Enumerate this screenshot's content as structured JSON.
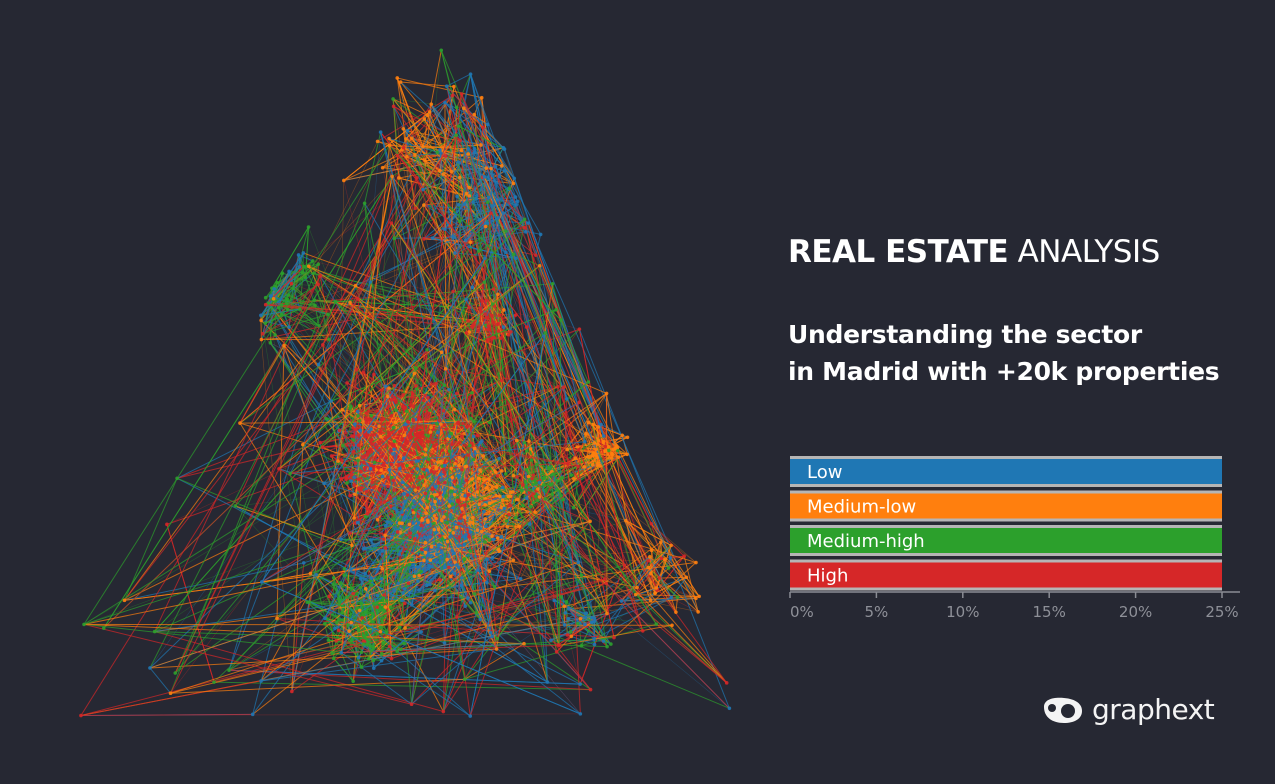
{
  "title": {
    "bold": "REAL ESTATE",
    "light": "ANALYSIS"
  },
  "subtitle": {
    "line1": "Understanding the sector",
    "line2": "in Madrid with +20k properties"
  },
  "colors": {
    "background": "#262833",
    "low": "#1f77b4",
    "medium_low": "#ff7f0e",
    "medium_high": "#2ca02c",
    "high": "#d62728"
  },
  "chart_data": {
    "type": "bar",
    "orientation": "horizontal",
    "categories": [
      "Low",
      "Medium-low",
      "Medium-high",
      "High"
    ],
    "values": [
      25,
      25,
      25,
      25
    ],
    "colors": [
      "#1f77b4",
      "#ff7f0e",
      "#2ca02c",
      "#d62728"
    ],
    "xlim": [
      0,
      25
    ],
    "x_ticks": [
      "0%",
      "5%",
      "10%",
      "15%",
      "20%",
      "25%"
    ],
    "x_tick_values": [
      0,
      5,
      10,
      15,
      20,
      25
    ],
    "grid": false,
    "labels_inside_bars": true
  },
  "network": {
    "legend_colors": [
      "#1f77b4",
      "#ff7f0e",
      "#2ca02c",
      "#d62728"
    ]
  },
  "logo": {
    "text": "graphext"
  }
}
